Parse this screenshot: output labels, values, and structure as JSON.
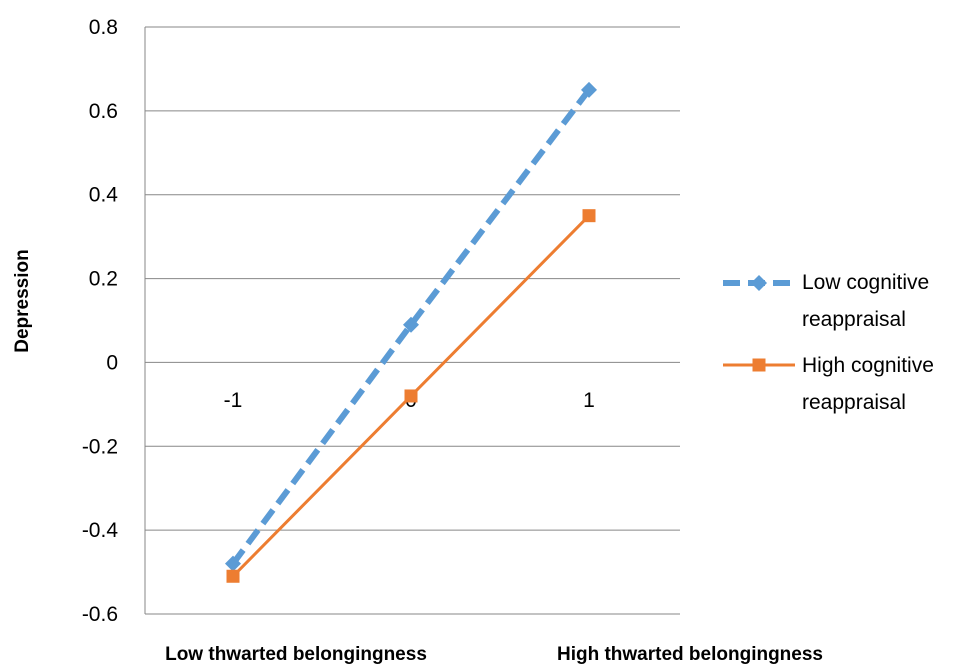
{
  "chart_data": {
    "type": "line",
    "x_ticks": [
      "-1",
      "0",
      "1"
    ],
    "x": [
      -1,
      0,
      1
    ],
    "ylabel": "Depression",
    "x_end_labels": [
      "Low thwarted belongingness",
      "High thwarted belongingness"
    ],
    "ylim": [
      -0.6,
      0.8
    ],
    "y_ticks": [
      -0.6,
      -0.4,
      -0.2,
      0,
      0.2,
      0.4,
      0.6,
      0.8
    ],
    "y_tick_labels": [
      "-0.6",
      "-0.4",
      "-0.2",
      "0",
      "0.2",
      "0.4",
      "0.6",
      "0.8"
    ],
    "grid": "horizontal",
    "legend_position": "right",
    "series": [
      {
        "name": "Low cognitive reappraisal",
        "name_lines": [
          "Low cognitive",
          "reappraisal"
        ],
        "values": [
          -0.48,
          0.09,
          0.65
        ],
        "color": "#5B9BD5",
        "line_style": "dashed",
        "marker": "diamond"
      },
      {
        "name": "High cognitive reappraisal",
        "name_lines": [
          "High cognitive",
          "reappraisal"
        ],
        "values": [
          -0.51,
          -0.08,
          0.35
        ],
        "color": "#ED7D31",
        "line_style": "solid",
        "marker": "square"
      }
    ]
  }
}
